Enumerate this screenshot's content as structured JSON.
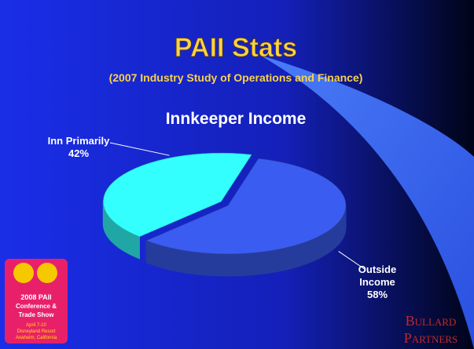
{
  "title": "PAII Stats",
  "subtitle": "(2007 Industry Study of Operations and Finance)",
  "chart_data": {
    "type": "pie",
    "title": "Innkeeper Income",
    "categories": [
      "Inn Primarily",
      "Outside Income"
    ],
    "values": [
      42,
      58
    ],
    "value_labels": [
      "42%",
      "58%"
    ],
    "colors": [
      "#33ffff",
      "#3a5cf0"
    ]
  },
  "logo": {
    "line1": "2008 PAII",
    "line2": "Conference &",
    "line3": "Trade Show",
    "dates": "April 7-10",
    "place1": "Disneyland Resort",
    "place2": "Anaheim, California"
  },
  "brand": {
    "line1": "Bullard",
    "line2": "Partners"
  }
}
